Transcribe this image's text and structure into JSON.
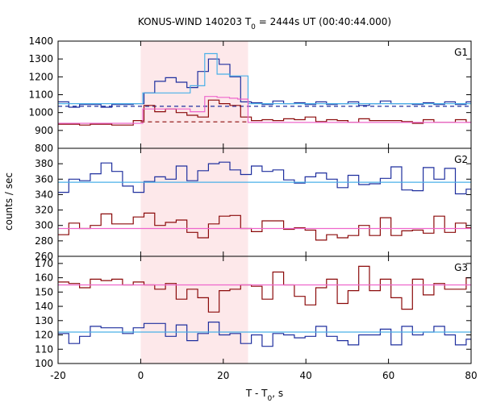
{
  "chart_data": {
    "type": "line",
    "title": "KONUS-WIND 140203 T",
    "title_sub": "0",
    "title_rest": " = 2444s UT (00:40:44.000)",
    "xlabel": "T - T",
    "xlabel_sub": "0",
    "xlabel_rest": ", s",
    "ylabel": "counts / sec",
    "xlim": [
      -20,
      80
    ],
    "xticks": [
      -20,
      0,
      20,
      40,
      60,
      80
    ],
    "highlight_interval": [
      0,
      26
    ],
    "highlight_color": "#fde8ea",
    "panels": [
      {
        "name": "G1",
        "ylim": [
          800,
          1400
        ],
        "yticks": [
          800,
          900,
          1000,
          1100,
          1200,
          1300,
          1400
        ],
        "series": [
          {
            "color": "#1f2f9e",
            "style": "step",
            "x": [
              -20,
              -17.4,
              -14.8,
              -12.2,
              -9.6,
              -7,
              -4.4,
              -1.8,
              0.8,
              3.4,
              6,
              8.6,
              11.2,
              13.8,
              16.4,
              19,
              21.6,
              24.2,
              26.8,
              29.4,
              32,
              34.6,
              37.2,
              39.8,
              42.4,
              45,
              47.6,
              50.2,
              52.8,
              55.4,
              58,
              60.6,
              63.2,
              65.8,
              68.4,
              71,
              73.6,
              76.2,
              78.8
            ],
            "values": [
              1060,
              1030,
              1045,
              1045,
              1030,
              1045,
              1045,
              1050,
              1110,
              1175,
              1195,
              1170,
              1140,
              1230,
              1300,
              1270,
              1200,
              1060,
              1055,
              1045,
              1065,
              1050,
              1055,
              1045,
              1060,
              1045,
              1050,
              1060,
              1040,
              1050,
              1065,
              1050,
              1050,
              1045,
              1055,
              1045,
              1060,
              1045,
              1060
            ]
          },
          {
            "color": "#4ab0e8",
            "style": "step",
            "x": [
              -20,
              0.5,
              8,
              12,
              15.5,
              18.5,
              21.5,
              23.5,
              26,
              80
            ],
            "values": [
              1050,
              1110,
              1110,
              1150,
              1330,
              1215,
              1205,
              1205,
              1050,
              1050
            ]
          },
          {
            "color": "#1f2f9e",
            "style": "dashed",
            "x": [
              -20,
              80
            ],
            "values": [
              1035,
              1035
            ]
          },
          {
            "color": "#8b0a0a",
            "style": "step",
            "x": [
              -20,
              -17.4,
              -14.8,
              -12.2,
              -9.6,
              -7,
              -4.4,
              -1.8,
              0.8,
              3.4,
              6,
              8.6,
              11.2,
              13.8,
              16.4,
              19,
              21.6,
              24.2,
              26.8,
              29.4,
              32,
              34.6,
              37.2,
              39.8,
              42.4,
              45,
              47.6,
              50.2,
              52.8,
              55.4,
              58,
              60.6,
              63.2,
              65.8,
              68.4,
              71,
              73.6,
              76.2,
              78.8
            ],
            "values": [
              935,
              935,
              930,
              935,
              935,
              930,
              930,
              955,
              1040,
              1005,
              1020,
              1000,
              985,
              975,
              1070,
              1050,
              1040,
              975,
              955,
              960,
              955,
              965,
              960,
              975,
              950,
              960,
              955,
              945,
              965,
              955,
              955,
              955,
              950,
              940,
              960,
              945,
              945,
              960,
              945
            ]
          },
          {
            "color": "#ee66cc",
            "style": "step",
            "x": [
              -20,
              0.5,
              8,
              12,
              15.5,
              18.5,
              21.5,
              23.5,
              26,
              80
            ],
            "values": [
              940,
              1020,
              1020,
              1005,
              1090,
              1085,
              1080,
              1075,
              945,
              945
            ]
          },
          {
            "color": "#8b0a0a",
            "style": "dashed",
            "x": [
              0,
              26
            ],
            "values": [
              948,
              948
            ]
          }
        ]
      },
      {
        "name": "G2",
        "ylim": [
          260,
          400
        ],
        "yticks": [
          260,
          280,
          300,
          320,
          340,
          360,
          380
        ],
        "series": [
          {
            "color": "#1f2f9e",
            "style": "step",
            "x": [
              -20,
              -17.4,
              -14.8,
              -12.2,
              -9.6,
              -7,
              -4.4,
              -1.8,
              0.8,
              3.4,
              6,
              8.6,
              11.2,
              13.8,
              16.4,
              19,
              21.6,
              24.2,
              26.8,
              29.4,
              32,
              34.6,
              37.2,
              39.8,
              42.4,
              45,
              47.6,
              50.2,
              52.8,
              55.4,
              58,
              60.6,
              63.2,
              65.8,
              68.4,
              71,
              73.6,
              76.2,
              78.8
            ],
            "values": [
              343,
              360,
              358,
              367,
              381,
              370,
              351,
              343,
              357,
              363,
              360,
              377,
              358,
              371,
              380,
              382,
              372,
              366,
              377,
              370,
              372,
              359,
              355,
              363,
              368,
              360,
              349,
              365,
              353,
              354,
              361,
              376,
              346,
              345,
              375,
              360,
              374,
              341,
              347
            ]
          },
          {
            "color": "#4ab0e8",
            "style": "flat",
            "x": [
              -20,
              80
            ],
            "values": [
              356,
              356
            ]
          },
          {
            "color": "#8b0a0a",
            "style": "step",
            "x": [
              -20,
              -17.4,
              -14.8,
              -12.2,
              -9.6,
              -7,
              -4.4,
              -1.8,
              0.8,
              3.4,
              6,
              8.6,
              11.2,
              13.8,
              16.4,
              19,
              21.6,
              24.2,
              26.8,
              29.4,
              32,
              34.6,
              37.2,
              39.8,
              42.4,
              45,
              47.6,
              50.2,
              52.8,
              55.4,
              58,
              60.6,
              63.2,
              65.8,
              68.4,
              71,
              73.6,
              76.2,
              78.8
            ],
            "values": [
              288,
              303,
              296,
              300,
              315,
              302,
              302,
              311,
              316,
              300,
              304,
              307,
              291,
              284,
              302,
              312,
              313,
              296,
              292,
              306,
              306,
              295,
              297,
              294,
              281,
              288,
              284,
              287,
              300,
              287,
              310,
              287,
              293,
              294,
              290,
              312,
              291,
              303,
              297
            ]
          },
          {
            "color": "#ee66cc",
            "style": "flat",
            "x": [
              -20,
              80
            ],
            "values": [
              296,
              296
            ]
          }
        ]
      },
      {
        "name": "G3",
        "ylim": [
          100,
          175
        ],
        "yticks": [
          100,
          110,
          120,
          130,
          140,
          150,
          160,
          170
        ],
        "series": [
          {
            "color": "#8b0a0a",
            "style": "step",
            "x": [
              -20,
              -17.4,
              -14.8,
              -12.2,
              -9.6,
              -7,
              -4.4,
              -1.8,
              0.8,
              3.4,
              6,
              8.6,
              11.2,
              13.8,
              16.4,
              19,
              21.6,
              24.2,
              26.8,
              29.4,
              32,
              34.6,
              37.2,
              39.8,
              42.4,
              45,
              47.6,
              50.2,
              52.8,
              55.4,
              58,
              60.6,
              63.2,
              65.8,
              68.4,
              71,
              73.6,
              76.2,
              78.8
            ],
            "values": [
              157,
              156,
              153,
              159,
              158,
              159,
              155,
              157,
              155,
              152,
              156,
              145,
              152,
              146,
              136,
              151,
              152,
              155,
              154,
              145,
              164,
              155,
              147,
              141,
              153,
              159,
              142,
              151,
              168,
              151,
              159,
              146,
              138,
              159,
              148,
              156,
              152,
              152,
              160
            ]
          },
          {
            "color": "#ee66cc",
            "style": "flat",
            "x": [
              -20,
              80
            ],
            "values": [
              155,
              155
            ]
          },
          {
            "color": "#1f2f9e",
            "style": "step",
            "x": [
              -20,
              -17.4,
              -14.8,
              -12.2,
              -9.6,
              -7,
              -4.4,
              -1.8,
              0.8,
              3.4,
              6,
              8.6,
              11.2,
              13.8,
              16.4,
              19,
              21.6,
              24.2,
              26.8,
              29.4,
              32,
              34.6,
              37.2,
              39.8,
              42.4,
              45,
              47.6,
              50.2,
              52.8,
              55.4,
              58,
              60.6,
              63.2,
              65.8,
              68.4,
              71,
              73.6,
              76.2,
              78.8
            ],
            "values": [
              121,
              114,
              119,
              126,
              125,
              125,
              121,
              125,
              128,
              128,
              119,
              127,
              116,
              121,
              129,
              120,
              121,
              114,
              120,
              112,
              121,
              120,
              118,
              119,
              126,
              119,
              116,
              113,
              120,
              120,
              124,
              113,
              126,
              120,
              122,
              126,
              120,
              113,
              117
            ]
          },
          {
            "color": "#4ab0e8",
            "style": "flat",
            "x": [
              -20,
              80
            ],
            "values": [
              122,
              122
            ]
          }
        ]
      }
    ]
  }
}
